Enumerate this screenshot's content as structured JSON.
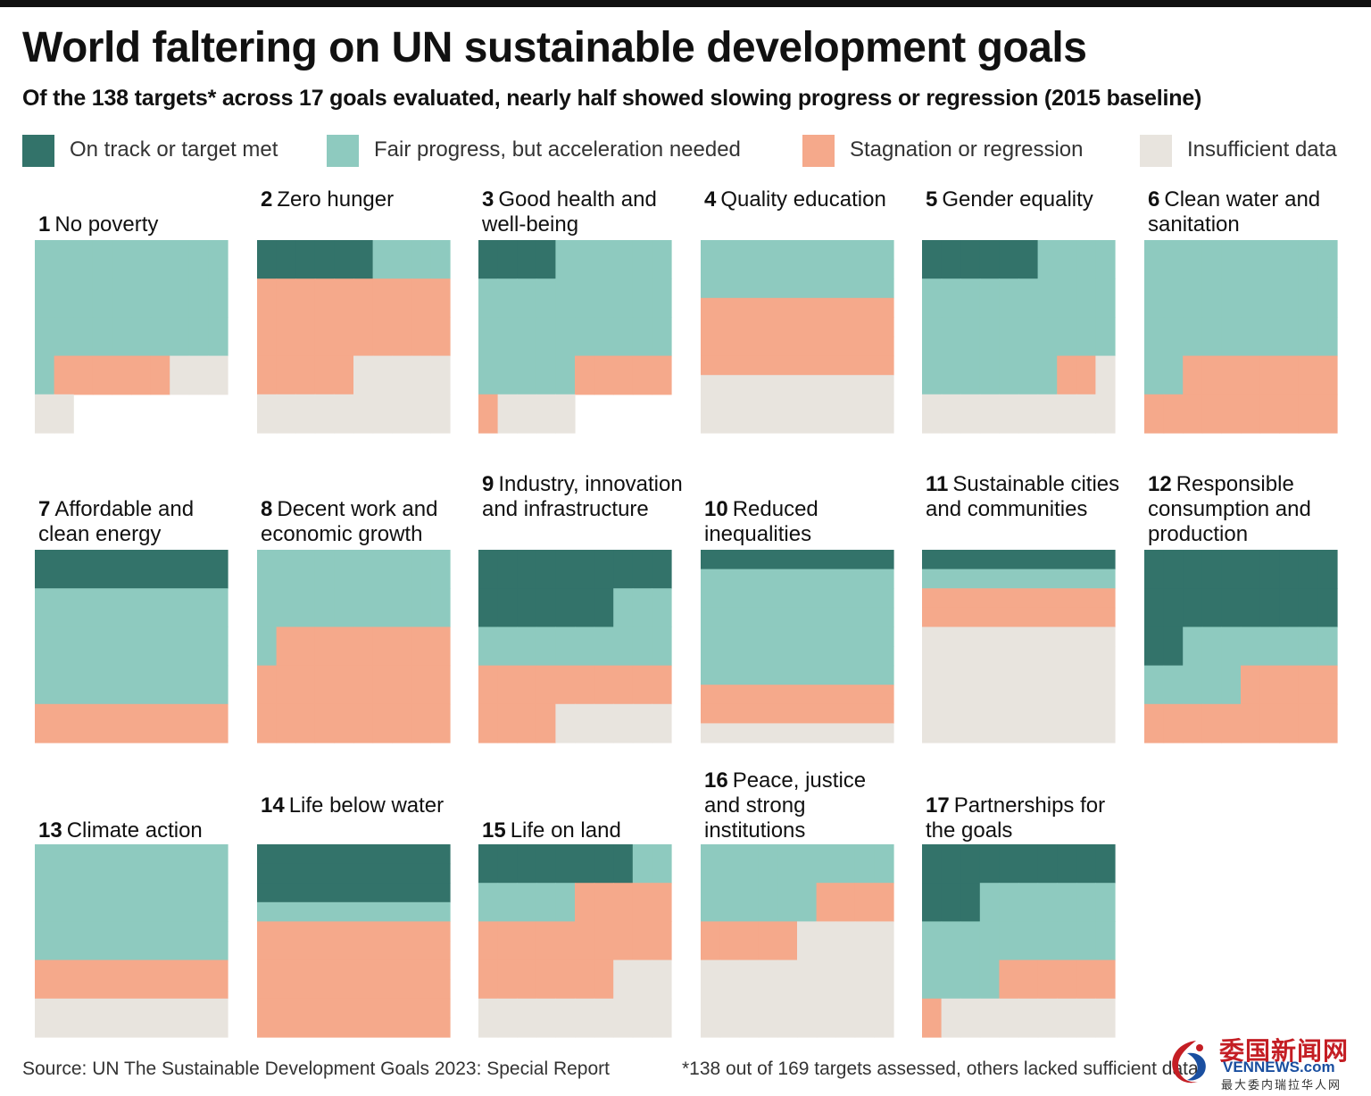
{
  "title": "World faltering on UN sustainable development goals",
  "subtitle": "Of the 138 targets* across 17 goals evaluated, nearly half showed slowing progress or regression (2015 baseline)",
  "legend": [
    {
      "label": "On track or target met",
      "color": "#33736a"
    },
    {
      "label": "Fair progress, but acceleration needed",
      "color": "#8ecabf"
    },
    {
      "label": "Stagnation or regression",
      "color": "#f5a98b"
    },
    {
      "label": "Insufficient data",
      "color": "#e8e4de"
    }
  ],
  "source": "Source: UN The Sustainable Development Goals 2023: Special Report",
  "footnote": "*138 out of 169 targets assessed, others lacked sufficient data",
  "watermark": {
    "title": "委国新闻网",
    "site": "VENNEWS.com",
    "slogan": "最大委内瑞拉华人网"
  },
  "chart_data": {
    "type": "waffle",
    "unit": "targets",
    "categories": [
      "On track or target met",
      "Fair progress, but acceleration needed",
      "Stagnation or regression",
      "Insufficient data"
    ],
    "goals": [
      {
        "num": "1",
        "name": "No poverty",
        "counts": [
          0,
          31,
          6,
          5
        ]
      },
      {
        "num": "2",
        "name": "Zero hunger",
        "counts": [
          6,
          4,
          25,
          15
        ]
      },
      {
        "num": "3",
        "name": "Good health and well-being",
        "counts": [
          4,
          31,
          6,
          4
        ]
      },
      {
        "num": "4",
        "name": "Quality education",
        "counts": [
          0,
          3,
          4,
          3
        ]
      },
      {
        "num": "5",
        "name": "Gender equality",
        "counts": [
          6,
          31,
          2,
          11
        ]
      },
      {
        "num": "6",
        "name": "Clean water and sanitation",
        "counts": [
          0,
          32,
          18,
          0
        ]
      },
      {
        "num": "7",
        "name": "Affordable and clean energy",
        "counts": [
          1,
          3,
          1,
          0
        ]
      },
      {
        "num": "8",
        "name": "Decent work and economic growth",
        "counts": [
          0,
          21,
          29,
          0
        ]
      },
      {
        "num": "9",
        "name": "Industry, innovation and infrastructure",
        "counts": [
          17,
          13,
          14,
          6
        ]
      },
      {
        "num": "10",
        "name": "Reduced inequalities",
        "counts": [
          1,
          6,
          2,
          1
        ]
      },
      {
        "num": "11",
        "name": "Sustainable cities and communities",
        "counts": [
          1,
          1,
          2,
          6
        ]
      },
      {
        "num": "12",
        "name": "Responsible consumption and production",
        "counts": [
          22,
          13,
          15,
          0
        ]
      },
      {
        "num": "13",
        "name": "Climate action",
        "counts": [
          0,
          3,
          1,
          1
        ]
      },
      {
        "num": "14",
        "name": "Life below water",
        "counts": [
          3,
          1,
          6,
          0
        ]
      },
      {
        "num": "15",
        "name": "Life on land",
        "counts": [
          8,
          7,
          22,
          13
        ]
      },
      {
        "num": "16",
        "name": "Peace, justice and strong institutions",
        "counts": [
          0,
          16,
          9,
          25
        ]
      },
      {
        "num": "17",
        "name": "Partnerships for the goals",
        "counts": [
          13,
          21,
          7,
          9
        ]
      }
    ]
  }
}
